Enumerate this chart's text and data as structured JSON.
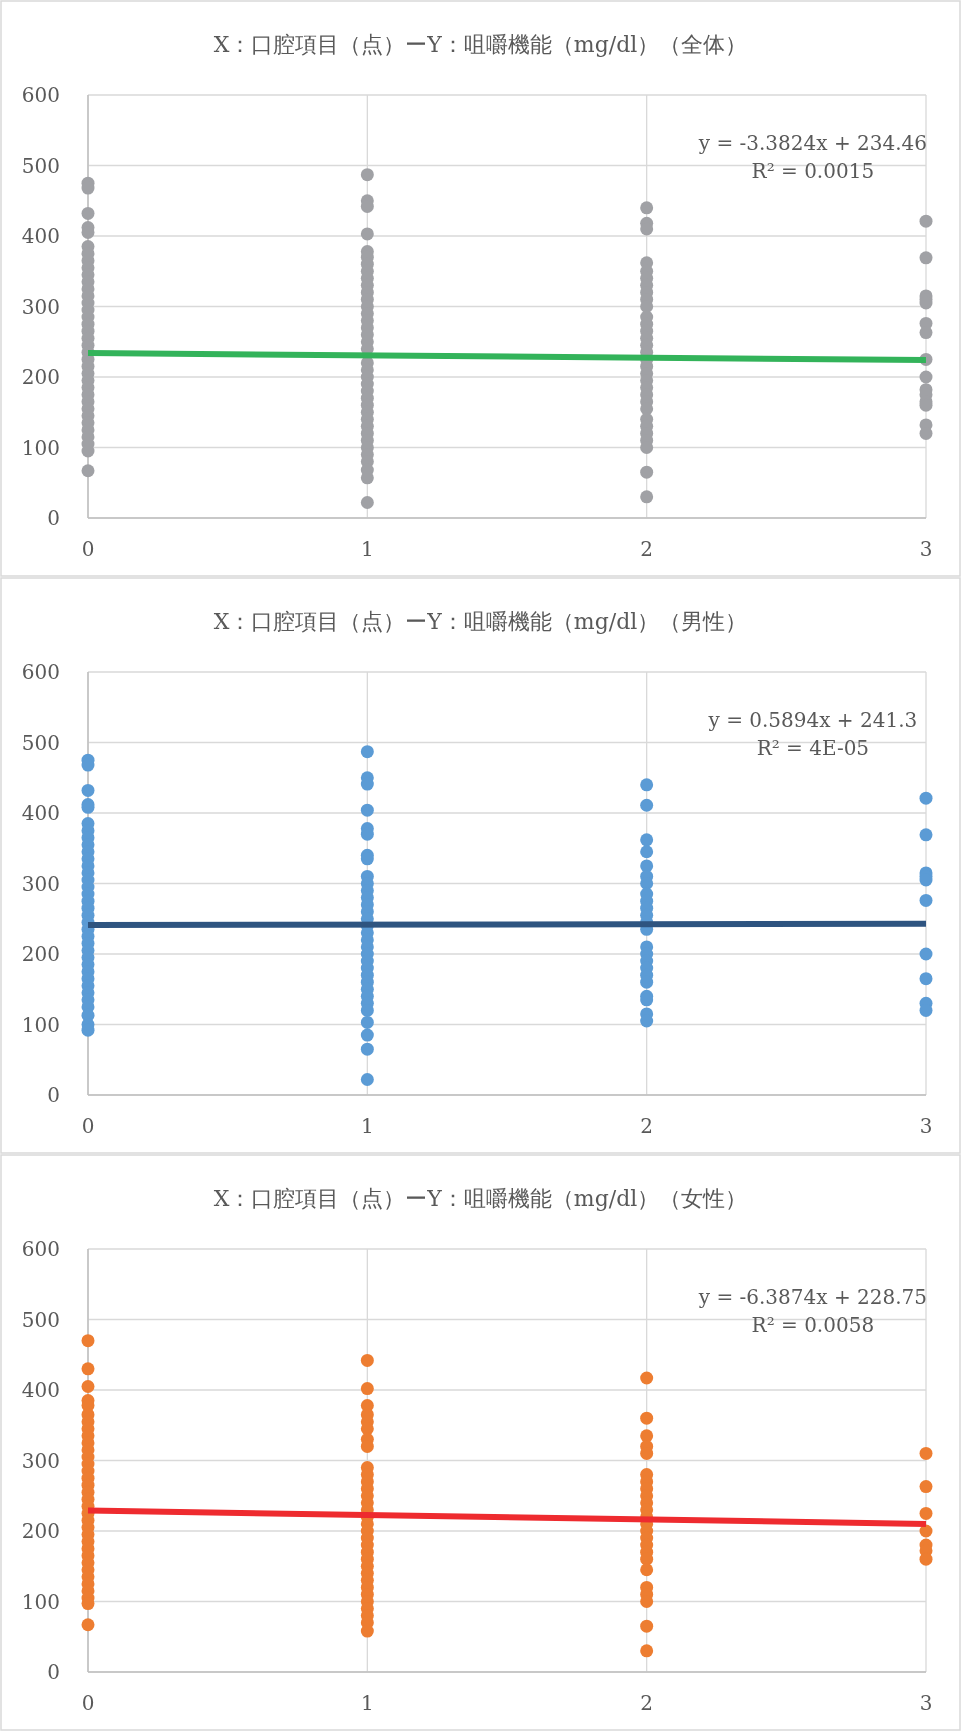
{
  "chart_data": [
    {
      "type": "scatter",
      "title": "X：口腔項目（点）ーY：咀嚼機能（mg/dl）（全体）",
      "xlim": [
        0,
        3
      ],
      "xticks": [
        0,
        1,
        2,
        3
      ],
      "ylim": [
        0,
        600
      ],
      "yticks": [
        0,
        100,
        200,
        300,
        400,
        500,
        600
      ],
      "grid": true,
      "marker": "circle",
      "annotations": [
        "y = -3.3824x + 234.46",
        "R² = 0.0015"
      ],
      "series": [
        {
          "type": "scatter",
          "color": "#a0a1a5",
          "x": [
            0,
            0,
            0,
            0,
            0,
            0,
            0,
            0,
            0,
            0,
            0,
            0,
            0,
            0,
            0,
            0,
            0,
            0,
            0,
            0,
            0,
            0,
            0,
            0,
            0,
            0,
            0,
            0,
            0,
            0,
            0,
            0,
            0,
            0,
            0,
            0,
            1,
            1,
            1,
            1,
            1,
            1,
            1,
            1,
            1,
            1,
            1,
            1,
            1,
            1,
            1,
            1,
            1,
            1,
            1,
            1,
            1,
            1,
            1,
            1,
            1,
            1,
            1,
            1,
            1,
            1,
            1,
            1,
            1,
            1,
            1,
            1,
            1,
            2,
            2,
            2,
            2,
            2,
            2,
            2,
            2,
            2,
            2,
            2,
            2,
            2,
            2,
            2,
            2,
            2,
            2,
            2,
            2,
            2,
            2,
            2,
            2,
            2,
            2,
            2,
            2,
            2,
            2,
            2,
            3,
            3,
            3,
            3,
            3,
            3,
            3,
            3,
            3,
            3,
            3,
            3,
            3,
            3,
            3
          ],
          "values": [
            475,
            468,
            432,
            412,
            405,
            385,
            375,
            365,
            355,
            345,
            335,
            325,
            315,
            305,
            295,
            285,
            275,
            265,
            255,
            245,
            235,
            225,
            215,
            205,
            195,
            185,
            175,
            165,
            155,
            145,
            135,
            125,
            115,
            105,
            95,
            67,
            487,
            450,
            442,
            403,
            378,
            370,
            360,
            350,
            340,
            330,
            320,
            310,
            300,
            290,
            280,
            270,
            260,
            250,
            240,
            220,
            210,
            200,
            190,
            180,
            170,
            160,
            150,
            140,
            130,
            120,
            110,
            100,
            90,
            80,
            68,
            57,
            22,
            440,
            418,
            410,
            362,
            350,
            340,
            330,
            320,
            310,
            300,
            285,
            275,
            265,
            255,
            245,
            235,
            225,
            215,
            205,
            195,
            185,
            175,
            165,
            155,
            140,
            130,
            120,
            110,
            100,
            65,
            30,
            421,
            369,
            315,
            310,
            305,
            276,
            263,
            225,
            200,
            182,
            175,
            165,
            160,
            132,
            120
          ]
        },
        {
          "type": "line",
          "marker": "none",
          "color": "#33b35a",
          "x": [
            0,
            3
          ],
          "values": [
            234,
            224
          ]
        }
      ]
    },
    {
      "type": "scatter",
      "title": "X：口腔項目（点）ーY：咀嚼機能（mg/dl）（男性）",
      "xlim": [
        0,
        3
      ],
      "xticks": [
        0,
        1,
        2,
        3
      ],
      "ylim": [
        0,
        600
      ],
      "yticks": [
        0,
        100,
        200,
        300,
        400,
        500,
        600
      ],
      "grid": true,
      "marker": "circle",
      "annotations": [
        "y = 0.5894x + 241.3",
        "R² = 4E-05"
      ],
      "series": [
        {
          "type": "scatter",
          "color": "#5b9bd5",
          "x": [
            0,
            0,
            0,
            0,
            0,
            0,
            0,
            0,
            0,
            0,
            0,
            0,
            0,
            0,
            0,
            0,
            0,
            0,
            0,
            0,
            0,
            0,
            0,
            0,
            0,
            0,
            0,
            0,
            0,
            0,
            0,
            0,
            0,
            0,
            0,
            1,
            1,
            1,
            1,
            1,
            1,
            1,
            1,
            1,
            1,
            1,
            1,
            1,
            1,
            1,
            1,
            1,
            1,
            1,
            1,
            1,
            1,
            1,
            1,
            1,
            1,
            1,
            1,
            1,
            1,
            1,
            1,
            2,
            2,
            2,
            2,
            2,
            2,
            2,
            2,
            2,
            2,
            2,
            2,
            2,
            2,
            2,
            2,
            2,
            2,
            2,
            2,
            2,
            2,
            2,
            3,
            3,
            3,
            3,
            3,
            3,
            3,
            3,
            3,
            3
          ],
          "values": [
            475,
            468,
            432,
            412,
            408,
            385,
            375,
            365,
            355,
            345,
            335,
            325,
            315,
            305,
            295,
            285,
            275,
            265,
            255,
            245,
            235,
            225,
            215,
            205,
            195,
            185,
            175,
            165,
            155,
            145,
            135,
            125,
            113,
            100,
            92,
            487,
            450,
            441,
            404,
            378,
            370,
            340,
            335,
            310,
            300,
            290,
            280,
            270,
            260,
            250,
            240,
            230,
            220,
            210,
            200,
            190,
            180,
            170,
            160,
            150,
            140,
            130,
            120,
            103,
            85,
            65,
            22,
            440,
            411,
            362,
            345,
            325,
            310,
            300,
            285,
            275,
            265,
            255,
            245,
            235,
            210,
            200,
            190,
            180,
            170,
            160,
            140,
            135,
            115,
            105,
            421,
            369,
            315,
            310,
            305,
            276,
            200,
            165,
            130,
            120
          ]
        },
        {
          "type": "line",
          "marker": "none",
          "color": "#2e5480",
          "x": [
            0,
            3
          ],
          "values": [
            241,
            243
          ]
        }
      ]
    },
    {
      "type": "scatter",
      "title": "X：口腔項目（点）ーY：咀嚼機能（mg/dl）（女性）",
      "xlim": [
        0,
        3
      ],
      "xticks": [
        0,
        1,
        2,
        3
      ],
      "ylim": [
        0,
        600
      ],
      "yticks": [
        0,
        100,
        200,
        300,
        400,
        500,
        600
      ],
      "grid": true,
      "marker": "circle",
      "annotations": [
        "y = -6.3874x + 228.75",
        "R² = 0.0058"
      ],
      "series": [
        {
          "type": "scatter",
          "color": "#ed7d31",
          "x": [
            0,
            0,
            0,
            0,
            0,
            0,
            0,
            0,
            0,
            0,
            0,
            0,
            0,
            0,
            0,
            0,
            0,
            0,
            0,
            0,
            0,
            0,
            0,
            0,
            0,
            0,
            0,
            0,
            0,
            0,
            0,
            0,
            0,
            0,
            1,
            1,
            1,
            1,
            1,
            1,
            1,
            1,
            1,
            1,
            1,
            1,
            1,
            1,
            1,
            1,
            1,
            1,
            1,
            1,
            1,
            1,
            1,
            1,
            1,
            1,
            1,
            1,
            1,
            1,
            1,
            1,
            2,
            2,
            2,
            2,
            2,
            2,
            2,
            2,
            2,
            2,
            2,
            2,
            2,
            2,
            2,
            2,
            2,
            2,
            2,
            2,
            2,
            2,
            2,
            2,
            3,
            3,
            3,
            3,
            3,
            3,
            3
          ],
          "values": [
            470,
            430,
            405,
            385,
            378,
            365,
            355,
            345,
            335,
            325,
            315,
            305,
            295,
            285,
            275,
            265,
            255,
            245,
            235,
            225,
            215,
            205,
            195,
            185,
            175,
            165,
            155,
            145,
            135,
            125,
            115,
            105,
            97,
            67,
            442,
            402,
            378,
            365,
            355,
            345,
            330,
            320,
            290,
            280,
            270,
            260,
            250,
            240,
            230,
            220,
            210,
            200,
            190,
            180,
            170,
            160,
            150,
            140,
            130,
            120,
            110,
            100,
            90,
            80,
            70,
            58,
            417,
            360,
            335,
            320,
            310,
            280,
            270,
            260,
            250,
            240,
            230,
            220,
            210,
            200,
            190,
            180,
            170,
            160,
            145,
            120,
            110,
            100,
            65,
            30,
            310,
            263,
            225,
            200,
            180,
            172,
            160
          ]
        },
        {
          "type": "line",
          "marker": "none",
          "color": "#ee2b2f",
          "x": [
            0,
            3
          ],
          "values": [
            229,
            210
          ]
        }
      ]
    }
  ]
}
